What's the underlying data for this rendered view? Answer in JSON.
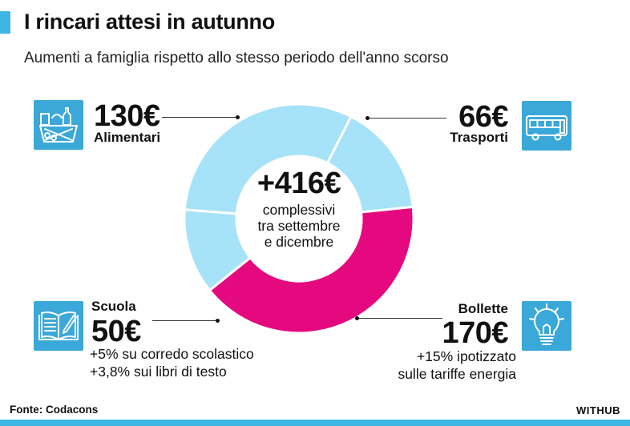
{
  "header": {
    "title": "I rincari attesi in autunno",
    "subtitle": "Aumenti a famiglia rispetto allo stesso periodo dell'anno scorso"
  },
  "colors": {
    "accent": "#3eb6e3",
    "icon_bg": "#3aa8d8",
    "light_segment": "#a6e2f8",
    "bollette_segment": "#e5097f"
  },
  "chart_data": {
    "type": "pie",
    "donut": true,
    "center_total": "+416€",
    "center_description": [
      "complessivi",
      "tra settembre",
      "e dicembre"
    ],
    "slices": [
      {
        "label": "Trasporti",
        "value": 66,
        "display": "66€",
        "color": "#a6e2f8",
        "icon": "bus-icon",
        "notes": []
      },
      {
        "label": "Bollette",
        "value": 170,
        "display": "170€",
        "color": "#e5097f",
        "icon": "lightbulb-icon",
        "notes": [
          "+15% ipotizzato",
          "sulle tariffe energia"
        ]
      },
      {
        "label": "Scuola",
        "value": 50,
        "display": "50€",
        "color": "#a6e2f8",
        "icon": "school-book-icon",
        "notes": [
          "+5% su corredo scolastico",
          "+3,8% sui libri di testo"
        ]
      },
      {
        "label": "Alimentari",
        "value": 130,
        "display": "130€",
        "color": "#a6e2f8",
        "icon": "grocery-basket-icon",
        "notes": []
      }
    ]
  },
  "footer": {
    "source": "Fonte: Codacons",
    "brand": "WITHUB"
  }
}
